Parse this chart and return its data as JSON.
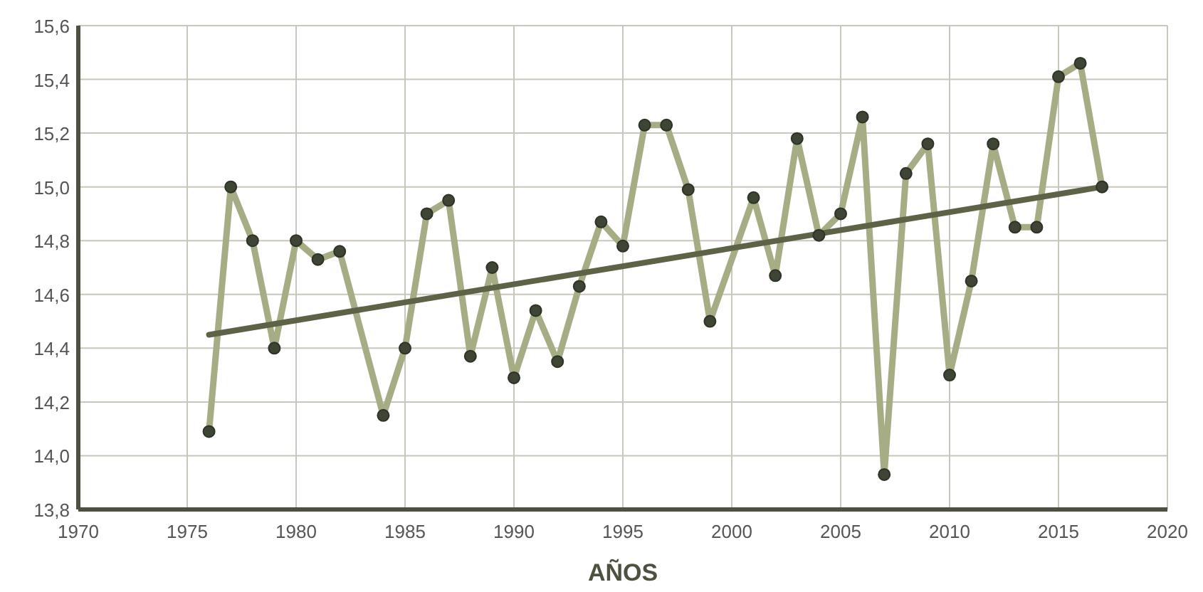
{
  "chart_data": {
    "type": "line",
    "xlabel": "AÑOS",
    "xlim": [
      1970,
      2020
    ],
    "xticks": [
      1970,
      1975,
      1980,
      1985,
      1990,
      1995,
      2000,
      2005,
      2010,
      2015,
      2020
    ],
    "ylim": [
      13.8,
      15.6
    ],
    "yticks": [
      {
        "value": 13.8,
        "label": "13,8"
      },
      {
        "value": 14.0,
        "label": "14,0"
      },
      {
        "value": 14.2,
        "label": "14,2"
      },
      {
        "value": 14.4,
        "label": "14,4"
      },
      {
        "value": 14.6,
        "label": "14,6"
      },
      {
        "value": 14.8,
        "label": "14,8"
      },
      {
        "value": 15.0,
        "label": "15,0"
      },
      {
        "value": 15.2,
        "label": "15,2"
      },
      {
        "value": 15.4,
        "label": "15,4"
      },
      {
        "value": 15.6,
        "label": "15,6"
      }
    ],
    "grid": true,
    "marker": "circle",
    "line_style": "solid",
    "series": [
      {
        "color": "#a6ad85",
        "x": [
          1976,
          1977,
          1978,
          1979,
          1980,
          1981,
          1982,
          1984,
          1985,
          1986,
          1987,
          1988,
          1989,
          1990,
          1991,
          1992,
          1993,
          1994,
          1995,
          1996,
          1997,
          1998,
          1999,
          2001,
          2002,
          2003,
          2004,
          2005,
          2006,
          2007,
          2008,
          2009,
          2010,
          2011,
          2012,
          2013,
          2014,
          2015,
          2016,
          2017
        ],
        "values": [
          14.09,
          15.0,
          14.8,
          14.4,
          14.8,
          14.73,
          14.76,
          14.15,
          14.4,
          14.9,
          14.95,
          14.37,
          14.7,
          14.29,
          14.54,
          14.35,
          14.63,
          14.87,
          14.78,
          15.23,
          15.23,
          14.99,
          14.5,
          14.96,
          14.67,
          15.18,
          14.82,
          14.9,
          15.26,
          13.93,
          15.05,
          15.16,
          14.3,
          14.65,
          15.16,
          14.85,
          14.85,
          15.41,
          15.46,
          15.0
        ]
      },
      {
        "color": "#5c6347",
        "marker": "none",
        "x": [
          1976,
          2017
        ],
        "values": [
          14.45,
          15.0
        ]
      }
    ]
  }
}
